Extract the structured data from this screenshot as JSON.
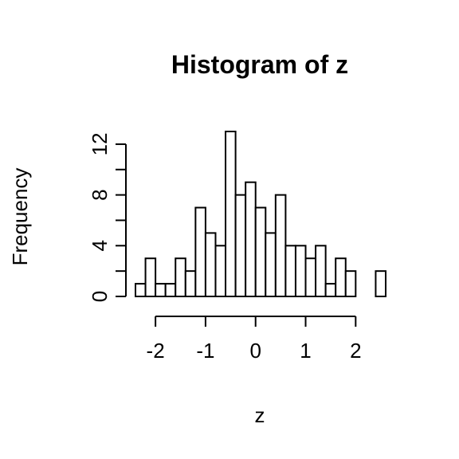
{
  "chart_data": {
    "type": "bar",
    "title": "Histogram of z",
    "xlabel": "z",
    "ylabel": "Frequency",
    "bin_width": 0.2,
    "bins": [
      {
        "start": -2.4,
        "end": -2.2,
        "count": 1
      },
      {
        "start": -2.2,
        "end": -2.0,
        "count": 3
      },
      {
        "start": -2.0,
        "end": -1.8,
        "count": 1
      },
      {
        "start": -1.8,
        "end": -1.6,
        "count": 1
      },
      {
        "start": -1.6,
        "end": -1.4,
        "count": 3
      },
      {
        "start": -1.4,
        "end": -1.2,
        "count": 2
      },
      {
        "start": -1.2,
        "end": -1.0,
        "count": 7
      },
      {
        "start": -1.0,
        "end": -0.8,
        "count": 5
      },
      {
        "start": -0.8,
        "end": -0.6,
        "count": 4
      },
      {
        "start": -0.6,
        "end": -0.4,
        "count": 13
      },
      {
        "start": -0.4,
        "end": -0.2,
        "count": 8
      },
      {
        "start": -0.2,
        "end": 0.0,
        "count": 9
      },
      {
        "start": 0.0,
        "end": 0.2,
        "count": 7
      },
      {
        "start": 0.2,
        "end": 0.4,
        "count": 5
      },
      {
        "start": 0.4,
        "end": 0.6,
        "count": 8
      },
      {
        "start": 0.6,
        "end": 0.8,
        "count": 4
      },
      {
        "start": 0.8,
        "end": 1.0,
        "count": 4
      },
      {
        "start": 1.0,
        "end": 1.2,
        "count": 3
      },
      {
        "start": 1.2,
        "end": 1.4,
        "count": 4
      },
      {
        "start": 1.4,
        "end": 1.6,
        "count": 1
      },
      {
        "start": 1.6,
        "end": 1.8,
        "count": 3
      },
      {
        "start": 1.8,
        "end": 2.0,
        "count": 2
      },
      {
        "start": 2.0,
        "end": 2.2,
        "count": 0
      },
      {
        "start": 2.2,
        "end": 2.4,
        "count": 0
      },
      {
        "start": 2.4,
        "end": 2.6,
        "count": 2
      }
    ],
    "x_ticks": [
      -2,
      -1,
      0,
      1,
      2
    ],
    "x_tick_labels": [
      "-2",
      "-1",
      "0",
      "1",
      "2"
    ],
    "y_ticks": [
      0,
      2,
      4,
      6,
      8,
      10,
      12
    ],
    "y_tick_labels": [
      "0",
      "",
      "4",
      "",
      "8",
      "",
      "12"
    ],
    "xlim": [
      -2.4,
      2.6
    ],
    "ylim": [
      0,
      13
    ],
    "grid": false,
    "bar_fill": "#ffffff",
    "bar_stroke": "#000000"
  }
}
